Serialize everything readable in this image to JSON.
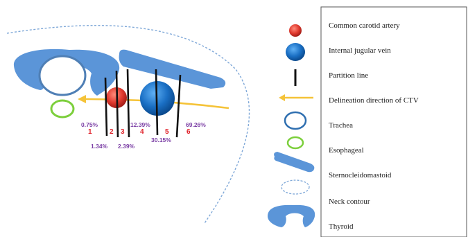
{
  "colors": {
    "artery": "#e03a2f",
    "vein": "#1a6fc4",
    "muscle": "#5b95d8",
    "esophagus": "#7ccf3c",
    "trachea": "#4f7fb5",
    "arrow": "#f5c338",
    "percent_text": "#7b3fa5",
    "zone_text": "#e0222a"
  },
  "diagram": {
    "percentages": [
      "0.75%",
      "1.34%",
      "2.39%",
      "12.39%",
      "30.15%",
      "69.26%"
    ],
    "zones": [
      "1",
      "2",
      "3",
      "4",
      "5",
      "6"
    ]
  },
  "legend": {
    "items": [
      {
        "icon": "common-carotid-artery-icon",
        "label": "Common carotid artery"
      },
      {
        "icon": "internal-jugular-vein-icon",
        "label": "Internal jugular vein"
      },
      {
        "icon": "partition-line-icon",
        "label": "Partition line"
      },
      {
        "icon": "delineation-arrow-icon",
        "label": "Delineation  direction of CTV"
      },
      {
        "icon": "trachea-icon",
        "label": "Trachea"
      },
      {
        "icon": "esophageal-icon",
        "label": "Esophageal"
      },
      {
        "icon": "sternocleidomastoid-icon",
        "label": "Sternocleidomastoid"
      },
      {
        "icon": "neck-contour-icon",
        "label": "Neck contour"
      },
      {
        "icon": "thyroid-icon",
        "label": "Thyroid"
      }
    ]
  }
}
